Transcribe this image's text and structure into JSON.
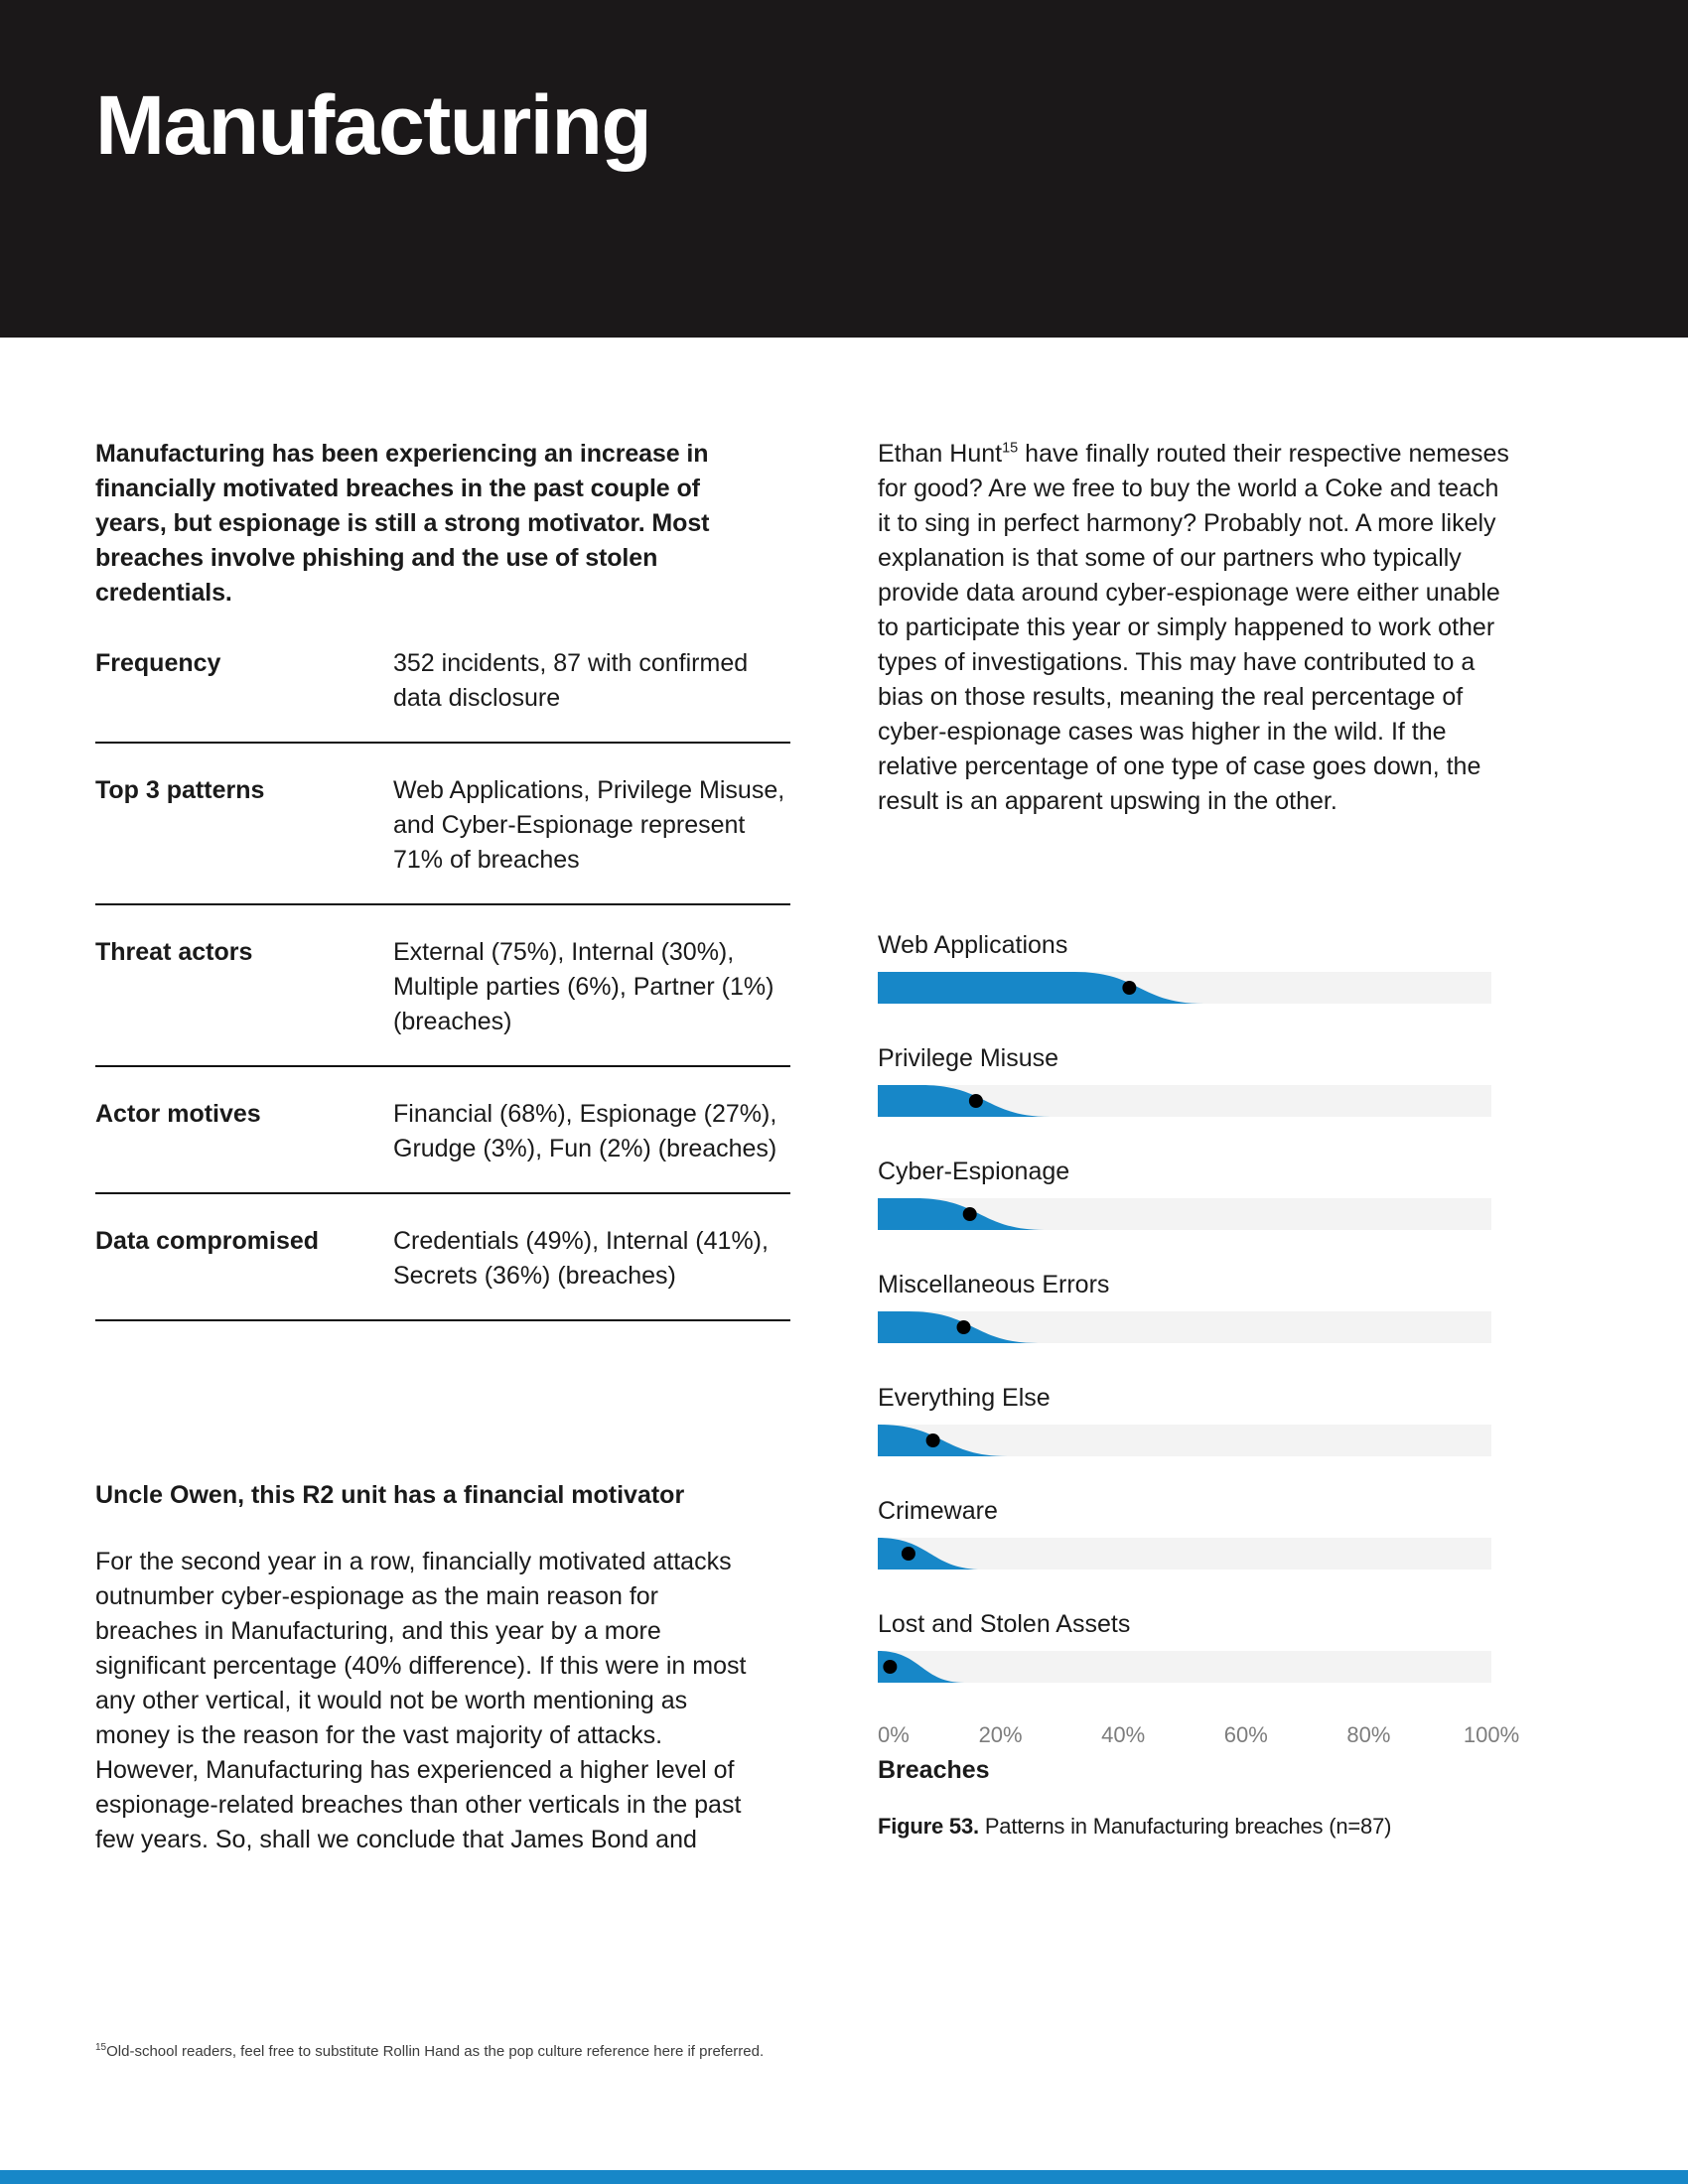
{
  "page": {
    "title": "Manufacturing",
    "footnote_marker": "15",
    "footnote": "Old-school readers, feel free to substitute Rollin Hand as the pop culture reference here if preferred."
  },
  "left": {
    "intro": "Manufacturing has been experiencing an increase in financially motivated breaches in the past couple of years, but espionage is still a strong motivator. Most breaches involve phishing and the use of stolen credentials.",
    "summary_table": {
      "rows": [
        {
          "label": "Frequency",
          "value": "352 incidents, 87 with confirmed data disclosure"
        },
        {
          "label": "Top 3 patterns",
          "value": "Web Applications, Privilege Misuse, and Cyber-Espionage represent 71% of breaches"
        },
        {
          "label": "Threat actors",
          "value": "External (75%), Internal (30%), Multiple parties (6%), Partner (1%) (breaches)"
        },
        {
          "label": "Actor motives",
          "value": "Financial (68%), Espionage (27%), Grudge (3%), Fun (2%) (breaches)"
        },
        {
          "label": "Data compromised",
          "value": "Credentials (49%), Internal (41%), Secrets (36%) (breaches)"
        }
      ]
    },
    "section_heading": "Uncle Owen, this R2 unit has a financial motivator",
    "section_body": "For the second year in a row, financially motivated attacks outnumber cyber-espionage as the main reason for breaches in Manufacturing, and this year by a more significant percentage (40% difference). If this were in most any other vertical, it would not be worth mentioning as money is the reason for the vast majority of attacks. However, Manufacturing has experienced a higher level of espionage-related breaches than other verticals in the past few years. So, shall we conclude that James Bond and"
  },
  "right": {
    "body_before_sup": "Ethan Hunt",
    "sup": "15",
    "body_after_sup": " have finally routed their respective nemeses for good? Are we free to buy the world a Coke and teach it to sing in perfect harmony? Probably not. A more likely explanation is that some of our partners who typically provide data around cyber-espionage were either unable to participate this year or simply happened to work other types of investigations. This may have contributed to a bias on those results, meaning the real percentage of cyber-espionage cases was higher in the wild. If the relative percentage of one type of case goes down, the result is an apparent upswing in the other."
  },
  "chart_data": {
    "type": "bar",
    "orientation": "horizontal",
    "title": "Patterns in Manufacturing breaches",
    "categories": [
      "Web Applications",
      "Privilege Misuse",
      "Cyber-Espionage",
      "Miscellaneous Errors",
      "Everything Else",
      "Crimeware",
      "Lost and Stolen Assets"
    ],
    "values": [
      41,
      16,
      15,
      14,
      9,
      5,
      2
    ],
    "unit": "%",
    "xlabel": "Breaches",
    "x_ticks": [
      "0%",
      "20%",
      "40%",
      "60%",
      "80%",
      "100%"
    ],
    "xlim": [
      0,
      100
    ],
    "grid": false,
    "caption_label": "Figure 53.",
    "caption_text": " Patterns in Manufacturing breaches (n=87)"
  },
  "colors": {
    "banner": "#1b1819",
    "accent_blue": "#1787c8",
    "bar_bg": "#f3f3f3",
    "bar_fill": "#1787c8",
    "dot": "#000000"
  }
}
